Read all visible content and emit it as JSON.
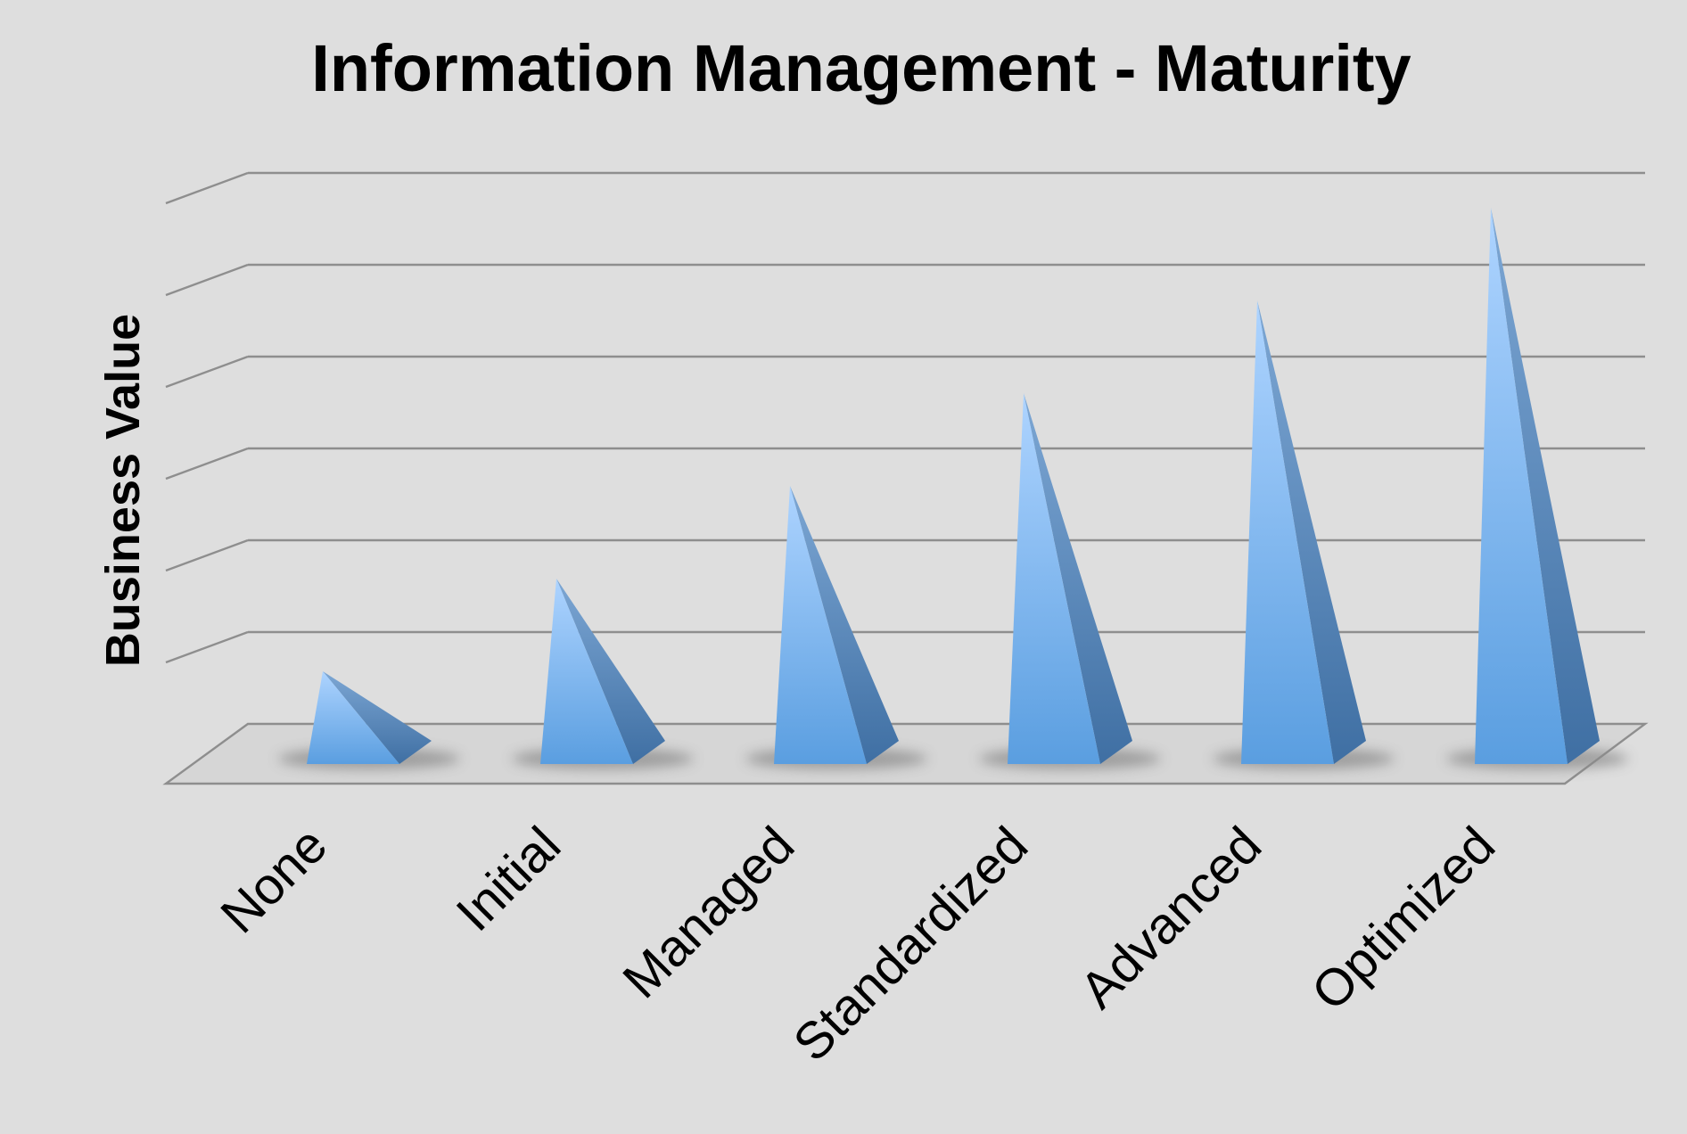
{
  "chart_data": {
    "type": "bar",
    "subtype": "3d-pyramid",
    "title": "Information Management - Maturity",
    "xlabel": "",
    "ylabel": "Business Value",
    "categories": [
      "None",
      "Initial",
      "Managed",
      "Standardized",
      "Advanced",
      "Optimized"
    ],
    "values": [
      1,
      2,
      3,
      4,
      5,
      6
    ],
    "ylim": [
      0,
      6
    ],
    "y_tick_labels_shown": false,
    "grid": true,
    "legend": "none",
    "colors": {
      "background": "#dedede",
      "pyramid_front_light": "#aed4ff",
      "pyramid_front_dark": "#5a9ee0",
      "pyramid_side_light": "#7da7d4",
      "pyramid_side_dark": "#3f6fa3",
      "gridline": "#8e8e8e",
      "shadow": "#8a8a8a"
    }
  }
}
